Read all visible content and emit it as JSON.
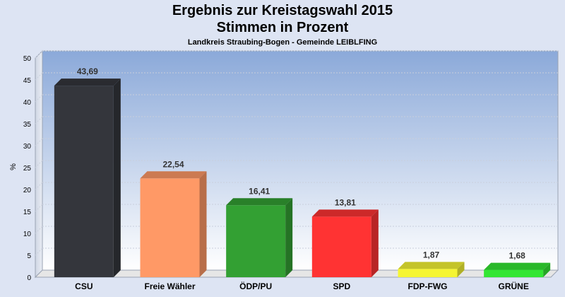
{
  "header": {
    "title_line1": "Ergebnis zur Kreistagswahl 2015",
    "title_line2": "Stimmen in Prozent",
    "subtitle": "Landkreis Straubing-Bogen - Gemeinde LEIBLFING"
  },
  "chart_data": {
    "type": "bar",
    "title": "Ergebnis zur Kreistagswahl 2015 Stimmen in Prozent",
    "subtitle": "Landkreis Straubing-Bogen - Gemeinde LEIBLFING",
    "xlabel": "",
    "ylabel": "%",
    "ylim": [
      0,
      50
    ],
    "yticks": [
      0,
      5,
      10,
      15,
      20,
      25,
      30,
      35,
      40,
      45,
      50
    ],
    "grid": true,
    "categories": [
      "CSU",
      "Freie Wähler",
      "ÖDP/PU",
      "SPD",
      "FDP-FWG",
      "GRÜNE"
    ],
    "values": [
      43.69,
      22.54,
      16.41,
      13.81,
      1.87,
      1.68
    ],
    "value_labels": [
      "43,69",
      "22,54",
      "16,41",
      "13,81",
      "1,87",
      "1,68"
    ],
    "colors": [
      "#34363c",
      "#ff9966",
      "#33a033",
      "#ff3333",
      "#f5f533",
      "#33e633"
    ]
  }
}
